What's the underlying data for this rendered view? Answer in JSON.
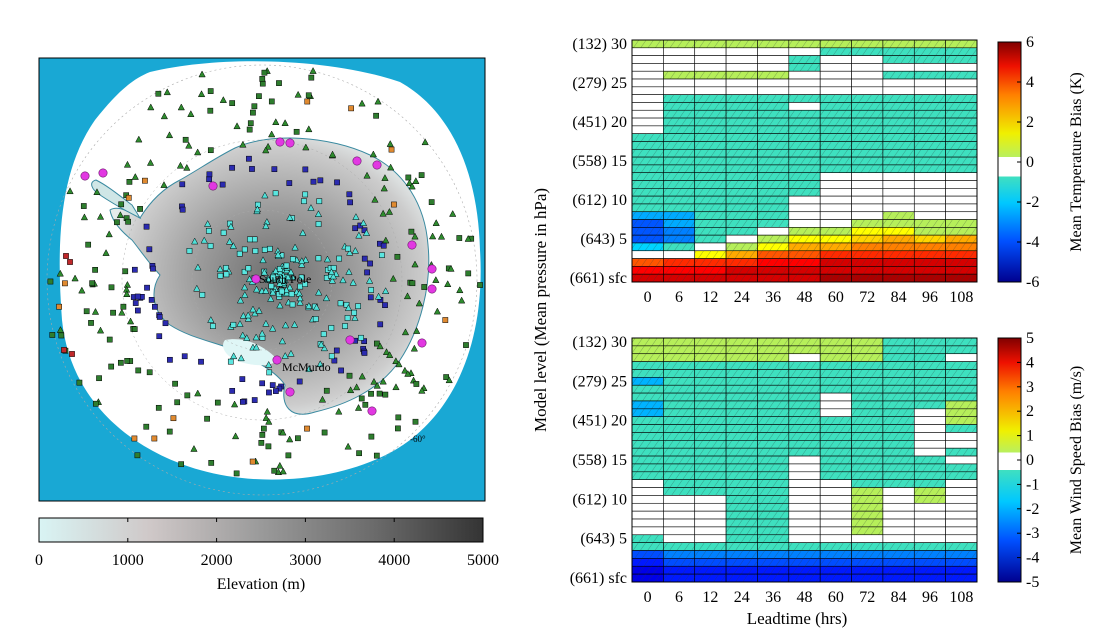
{
  "map": {
    "labels": {
      "south_pole": "South Pole",
      "mcmurdo": "McMurdo",
      "lat60": "-60°"
    },
    "colors": {
      "ocean": "#19a8d4",
      "ice": "#ffffff",
      "low": "#d8f4f4",
      "high": "#3c3c3c"
    },
    "colorbar": {
      "label": "Elevation (m)",
      "ticks": [
        "0",
        "1000",
        "2000",
        "3000",
        "4000",
        "5000"
      ],
      "range": [
        0,
        5000
      ]
    }
  },
  "shared": {
    "ylabel": "Model level (Mean pressure in hPa)",
    "y_tick_labels": [
      "(132)  30",
      "(279)  25",
      "(451)  20",
      "(558)  15",
      "(612)  10",
      "(643)  5",
      "(661) sfc"
    ],
    "x_tick_labels": [
      "0",
      "6",
      "12",
      "24",
      "36",
      "48",
      "60",
      "72",
      "84",
      "96",
      "108"
    ],
    "xlabel": "Leadtime (hrs)"
  },
  "chart_data": [
    {
      "type": "heatmap",
      "title": "",
      "xlabel": "",
      "ylabel": "Model level (Mean pressure in hPa)",
      "x": [
        "0",
        "6",
        "12",
        "24",
        "36",
        "48",
        "60",
        "72",
        "84",
        "96",
        "108"
      ],
      "levels_top_to_bottom": [
        "30",
        "29",
        "28",
        "27",
        "26",
        "25",
        "24",
        "23",
        "22",
        "21",
        "20",
        "19",
        "18",
        "17",
        "16",
        "15",
        "14",
        "13",
        "12",
        "11",
        "10",
        "9",
        "8",
        "7",
        "6",
        "5",
        "4",
        "3",
        "2",
        "1",
        "sfc"
      ],
      "values": [
        [
          1.2,
          1.2,
          1.2,
          1.2,
          1.2,
          1.2,
          1.2,
          1.2,
          0.1,
          0.1,
          0.1
        ],
        [
          0,
          0,
          0,
          0,
          0,
          0,
          -1.5,
          -1.5,
          -1.5,
          -1.5,
          -1.5
        ],
        [
          0,
          0,
          0,
          0,
          0,
          -1.2,
          0,
          0,
          -1.2,
          -1.2,
          -1.2
        ],
        [
          0,
          0,
          0,
          0,
          0,
          -1.2,
          0,
          0,
          0,
          0,
          0
        ],
        [
          0,
          1.2,
          1.2,
          1.2,
          1.2,
          0,
          0,
          0,
          -1.2,
          -1.2,
          -1.2
        ],
        [
          0,
          0,
          0,
          0,
          0,
          0,
          0,
          0,
          0,
          0,
          0
        ],
        [
          0,
          0,
          0,
          0,
          0,
          0,
          0,
          0,
          0,
          0,
          0
        ],
        [
          0,
          -1.5,
          -1.5,
          -1.5,
          -1.5,
          -1.5,
          -1.5,
          -1.5,
          -1.5,
          -1.5,
          -1.5
        ],
        [
          0,
          -1.5,
          -1.5,
          -1.5,
          -1.5,
          0,
          -1.5,
          -1.5,
          -1.5,
          -1.5,
          -1.5
        ],
        [
          0,
          -1.5,
          -1.5,
          -1.5,
          -1.5,
          -1.5,
          -1.5,
          -1.5,
          -1.5,
          -1.5,
          -1.5
        ],
        [
          0,
          -1.5,
          -1.5,
          -1.5,
          -1.5,
          -1.5,
          -1.5,
          -1.5,
          -1.5,
          -1.5,
          -1.5
        ],
        [
          0,
          -1.5,
          -1.5,
          -1.5,
          -1.5,
          -1.5,
          -1.5,
          -1.5,
          -1.5,
          -1.5,
          -1.5
        ],
        [
          -1.5,
          -1.5,
          -1.5,
          -1.5,
          -1.5,
          -1.5,
          -1.5,
          -1.5,
          -1.5,
          -1.5,
          -1.5
        ],
        [
          -1.5,
          -1.5,
          -1.5,
          -1.5,
          -1.5,
          -1.5,
          -1.5,
          -1.5,
          -1.5,
          -1.5,
          -1.5
        ],
        [
          -1.5,
          -1.5,
          -1.5,
          -1.5,
          -1.5,
          -1.5,
          -1.5,
          -1.5,
          -1.5,
          -1.5,
          -1.5
        ],
        [
          -1.5,
          -1.5,
          -1.5,
          -1.5,
          -1.5,
          -1.5,
          -1.5,
          -1.5,
          -1.5,
          -1.5,
          -1.5
        ],
        [
          -1.5,
          -1.5,
          -1.5,
          -1.5,
          -1.5,
          -1.5,
          -1.5,
          -1.5,
          -1.5,
          -1.5,
          -1.5
        ],
        [
          -1.5,
          -1.5,
          -1.5,
          -1.5,
          -1.5,
          -1.5,
          0,
          0,
          0,
          0,
          0
        ],
        [
          -1.5,
          -1.5,
          -1.5,
          -1.5,
          -1.5,
          -1.5,
          0,
          0,
          0,
          0,
          0
        ],
        [
          -1.5,
          -1.5,
          -1.5,
          -1.5,
          -1.5,
          -1.5,
          0,
          0,
          0,
          0,
          0
        ],
        [
          -1.5,
          -1.5,
          -1.5,
          -1.5,
          -1.5,
          0,
          0,
          0,
          0,
          0,
          0
        ],
        [
          -1.5,
          -1.5,
          -1.5,
          -1.5,
          -1.5,
          0,
          0,
          0,
          0,
          0,
          0
        ],
        [
          -2.5,
          -2.5,
          -1.5,
          -1.5,
          -1.5,
          0,
          0,
          0,
          1.0,
          0,
          0
        ],
        [
          -3.5,
          -2.5,
          -1.5,
          -1.5,
          -1.5,
          0,
          0,
          1.0,
          1.0,
          1.0,
          1.0
        ],
        [
          -3.5,
          -3.0,
          -1.5,
          -1.5,
          0,
          1.0,
          1.0,
          1.5,
          1.5,
          1.0,
          1.0
        ],
        [
          -3.5,
          -3.0,
          -1.5,
          0,
          1.2,
          1.5,
          1.5,
          2.0,
          2.5,
          2.0,
          2.5
        ],
        [
          -2.0,
          -1.5,
          0,
          1.0,
          1.5,
          2.5,
          2.5,
          3.0,
          3.0,
          3.0,
          3.0
        ],
        [
          0,
          0,
          1.5,
          2.5,
          3.5,
          3.5,
          4.0,
          4.0,
          4.0,
          4.0,
          4.0
        ],
        [
          3.5,
          4.0,
          4.0,
          4.0,
          4.5,
          4.5,
          5.0,
          5.0,
          5.0,
          5.0,
          5.0
        ],
        [
          4.5,
          4.5,
          4.5,
          5.0,
          5.0,
          5.0,
          5.0,
          5.0,
          5.0,
          5.0,
          5.0
        ],
        [
          5.0,
          5.0,
          5.0,
          5.0,
          5.0,
          5.0,
          5.5,
          5.5,
          5.5,
          5.5,
          5.5
        ]
      ],
      "colorbar": {
        "label": "Mean Temperature Bias (K)",
        "ticks": [
          6,
          4,
          2,
          0,
          -2,
          -4,
          -6
        ],
        "range": [
          -6,
          6
        ]
      }
    },
    {
      "type": "heatmap",
      "title": "",
      "xlabel": "Leadtime (hrs)",
      "ylabel": "Model level (Mean pressure in hPa)",
      "x": [
        "0",
        "6",
        "12",
        "24",
        "36",
        "48",
        "60",
        "72",
        "84",
        "96",
        "108"
      ],
      "levels_top_to_bottom": [
        "30",
        "29",
        "28",
        "27",
        "26",
        "25",
        "24",
        "23",
        "22",
        "21",
        "20",
        "19",
        "18",
        "17",
        "16",
        "15",
        "14",
        "13",
        "12",
        "11",
        "10",
        "9",
        "8",
        "7",
        "6",
        "5",
        "4",
        "3",
        "2",
        "1",
        "sfc"
      ],
      "values": [
        [
          0.8,
          0.8,
          0.8,
          0.8,
          0.8,
          0.8,
          0.8,
          0.8,
          -0.8,
          -0.8,
          -0.8
        ],
        [
          0.8,
          0.8,
          0.8,
          0.8,
          0.8,
          0.8,
          0.8,
          0.8,
          -0.8,
          -0.8,
          -0.8
        ],
        [
          0.8,
          0.8,
          0.8,
          0.8,
          0.8,
          0,
          0.8,
          0.8,
          -0.8,
          -0.8,
          0
        ],
        [
          -0.8,
          -0.8,
          -0.8,
          -0.8,
          -0.8,
          -0.8,
          -0.8,
          -0.8,
          -0.8,
          -0.8,
          -1.5
        ],
        [
          -1.5,
          -0.8,
          -0.8,
          -0.8,
          -0.8,
          -0.8,
          -0.8,
          -0.8,
          -1.5,
          -0.8,
          -1.5
        ],
        [
          -2.0,
          -0.8,
          -0.8,
          -0.8,
          -0.8,
          -0.8,
          -0.8,
          -0.8,
          -1.5,
          -0.8,
          -0.8
        ],
        [
          -1.5,
          -0.8,
          -0.8,
          -0.8,
          -0.8,
          -0.8,
          -0.8,
          -0.8,
          -1.5,
          -0.8,
          -0.8
        ],
        [
          -1.5,
          -0.8,
          -0.8,
          -0.8,
          -0.8,
          -0.8,
          0,
          -0.8,
          -0.8,
          -0.8,
          -0.8
        ],
        [
          -2.0,
          -0.8,
          -0.8,
          -0.8,
          -0.8,
          -0.8,
          0,
          -0.8,
          -0.8,
          -0.8,
          0.8
        ],
        [
          -2.0,
          -0.8,
          -0.8,
          -0.8,
          -0.8,
          -0.8,
          0,
          -0.8,
          -0.8,
          0,
          0.8
        ],
        [
          -1.5,
          -0.8,
          -0.8,
          -0.8,
          -0.8,
          -0.8,
          -0.8,
          -0.8,
          -0.8,
          0,
          0.8
        ],
        [
          -0.8,
          -0.8,
          -0.8,
          -0.8,
          -0.8,
          -0.8,
          -0.8,
          -0.8,
          -0.8,
          0,
          -0.8
        ],
        [
          -0.8,
          -0.8,
          -0.8,
          -0.8,
          -0.8,
          -0.8,
          -0.8,
          -0.8,
          -0.8,
          0,
          0
        ],
        [
          -0.8,
          -0.8,
          -0.8,
          -0.8,
          -0.8,
          -0.8,
          -0.8,
          -0.8,
          -0.8,
          0,
          0
        ],
        [
          -0.8,
          -0.8,
          -0.8,
          -0.8,
          -0.8,
          -0.8,
          -0.8,
          -0.8,
          -0.8,
          0,
          -0.8
        ],
        [
          -0.8,
          -0.8,
          -0.8,
          -0.8,
          -0.8,
          0,
          -0.8,
          -0.8,
          -0.8,
          -0.8,
          0
        ],
        [
          -0.8,
          -0.8,
          -0.8,
          -0.8,
          -0.8,
          0,
          -0.8,
          -0.8,
          -0.8,
          -0.8,
          -0.8
        ],
        [
          -0.8,
          -0.8,
          -0.8,
          -0.8,
          -0.8,
          0,
          -0.8,
          -0.8,
          -0.8,
          -0.8,
          -0.8
        ],
        [
          0,
          -0.8,
          -0.8,
          -0.8,
          -0.8,
          0,
          0,
          -0.8,
          -0.8,
          -0.8,
          0
        ],
        [
          0,
          -0.8,
          -0.8,
          -0.8,
          -0.8,
          0,
          0,
          0.8,
          0,
          0.8,
          0
        ],
        [
          0,
          0,
          0,
          -0.8,
          -0.8,
          0,
          0,
          0.8,
          0,
          0.8,
          0
        ],
        [
          0,
          0,
          0,
          -0.8,
          -0.8,
          0,
          0,
          0.8,
          0,
          0,
          0
        ],
        [
          0,
          0,
          0,
          -0.8,
          -0.8,
          0,
          0,
          0.8,
          0,
          0,
          0
        ],
        [
          0,
          0,
          0,
          -0.8,
          -0.8,
          0,
          0,
          0.8,
          0,
          0,
          0
        ],
        [
          0,
          0,
          0,
          -0.8,
          -0.8,
          0,
          0,
          0.8,
          0,
          0,
          0
        ],
        [
          -1.5,
          0,
          0,
          -0.8,
          -0.8,
          0,
          0,
          0,
          0,
          0,
          0
        ],
        [
          -0.8,
          -0.8,
          -0.8,
          -0.8,
          -0.8,
          -0.8,
          -0.8,
          -0.8,
          -0.8,
          -0.8,
          -0.8
        ],
        [
          -3.0,
          -2.5,
          -2.5,
          -2.5,
          -2.5,
          -2.5,
          -2.5,
          -2.5,
          -2.5,
          -2.5,
          -2.5
        ],
        [
          -3.5,
          -3.0,
          -3.0,
          -3.0,
          -3.0,
          -3.0,
          -3.0,
          -3.0,
          -3.0,
          -3.0,
          -3.0
        ],
        [
          -4.0,
          -3.5,
          -3.5,
          -3.5,
          -3.5,
          -3.5,
          -3.5,
          -3.5,
          -3.5,
          -3.5,
          -3.5
        ],
        [
          -4.0,
          -3.5,
          -3.5,
          -3.5,
          -3.5,
          -3.5,
          -3.5,
          -3.5,
          -3.5,
          -3.5,
          -3.5
        ]
      ],
      "colorbar": {
        "label": "Mean Wind Speed Bias (m/s)",
        "ticks": [
          5,
          4,
          3,
          2,
          1,
          0,
          -1,
          -2,
          -3,
          -4,
          -5
        ],
        "range": [
          -5,
          5
        ]
      }
    }
  ]
}
